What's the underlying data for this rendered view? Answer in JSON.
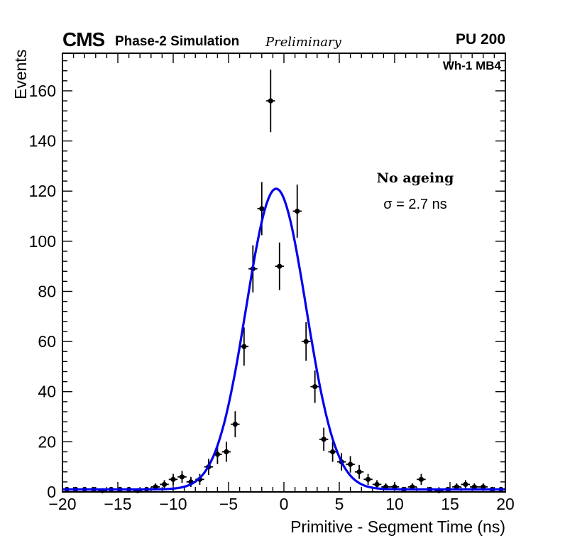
{
  "header": {
    "cms": "CMS",
    "subtitle": "Phase-2 Simulation",
    "preliminary": "Preliminary",
    "pu": "PU 200"
  },
  "annotations": {
    "chamber": "Wh-1 MB4",
    "ageing": "No ageing",
    "sigma": "σ = 2.7 ns"
  },
  "chart_data": {
    "type": "scatter",
    "title": "",
    "xlabel": "Primitive - Segment Time (ns)",
    "ylabel": "Events",
    "xlim": [
      -20,
      20
    ],
    "ylim": [
      0,
      175
    ],
    "grid": false,
    "legend": "none",
    "x_major_ticks": [
      -20,
      -15,
      -10,
      -5,
      0,
      5,
      10,
      15,
      20
    ],
    "x_tick_labels": [
      "−20",
      "−15",
      "−10",
      "−5",
      "0",
      "5",
      "10",
      "15",
      "20"
    ],
    "x_minor_step": 1,
    "y_major_ticks": [
      0,
      20,
      40,
      60,
      80,
      100,
      120,
      140,
      160
    ],
    "y_tick_labels": [
      "0",
      "20",
      "40",
      "60",
      "80",
      "100",
      "120",
      "140",
      "160"
    ],
    "y_minor_step": 4,
    "bin_half_width": 0.4,
    "points_format": "[x, y, yerr]",
    "points": [
      [
        -19.6,
        1,
        1
      ],
      [
        -18.8,
        1,
        1
      ],
      [
        -18.0,
        1,
        1
      ],
      [
        -17.2,
        1,
        1
      ],
      [
        -16.4,
        0.5,
        0.7
      ],
      [
        -15.6,
        1,
        1
      ],
      [
        -14.8,
        1,
        1
      ],
      [
        -14.0,
        1,
        1
      ],
      [
        -13.2,
        0.5,
        0.7
      ],
      [
        -12.4,
        1,
        1
      ],
      [
        -11.6,
        2,
        1.4
      ],
      [
        -10.8,
        3,
        1.7
      ],
      [
        -10.0,
        5,
        2.2
      ],
      [
        -9.2,
        6,
        2.4
      ],
      [
        -8.4,
        4,
        2.0
      ],
      [
        -7.6,
        5,
        2.2
      ],
      [
        -6.8,
        10,
        3.2
      ],
      [
        -6.0,
        15,
        3.9
      ],
      [
        -5.2,
        16,
        4.0
      ],
      [
        -4.4,
        27,
        5.2
      ],
      [
        -3.6,
        58,
        7.6
      ],
      [
        -2.8,
        89,
        9.4
      ],
      [
        -2.0,
        113,
        10.6
      ],
      [
        -1.2,
        156,
        12.5
      ],
      [
        -0.4,
        90,
        9.5
      ],
      [
        1.2,
        112,
        10.6
      ],
      [
        2.0,
        60,
        7.7
      ],
      [
        2.8,
        42,
        6.5
      ],
      [
        3.6,
        21,
        4.6
      ],
      [
        4.4,
        16,
        4.0
      ],
      [
        5.2,
        12,
        3.5
      ],
      [
        6.0,
        11,
        3.3
      ],
      [
        6.8,
        8,
        2.8
      ],
      [
        7.6,
        5,
        2.2
      ],
      [
        8.4,
        3,
        1.7
      ],
      [
        9.2,
        2,
        1.4
      ],
      [
        10.0,
        2,
        1.4
      ],
      [
        10.8,
        1,
        1
      ],
      [
        11.6,
        2,
        1.4
      ],
      [
        12.4,
        5,
        2.2
      ],
      [
        13.2,
        1,
        1
      ],
      [
        14.0,
        0.5,
        0.7
      ],
      [
        14.8,
        1,
        1
      ],
      [
        15.6,
        2,
        1.4
      ],
      [
        16.4,
        3,
        1.7
      ],
      [
        17.2,
        2,
        1.4
      ],
      [
        18.0,
        2,
        1.4
      ],
      [
        18.8,
        1,
        1
      ],
      [
        19.6,
        1,
        1
      ]
    ],
    "fit": {
      "shape": "gaussian",
      "amplitude": 120,
      "mean": -0.7,
      "sigma": 2.7,
      "baseline": 1
    },
    "colors": {
      "fit": "#0000ee",
      "marker": "#000000",
      "frame": "#000000",
      "background": "#ffffff"
    }
  }
}
